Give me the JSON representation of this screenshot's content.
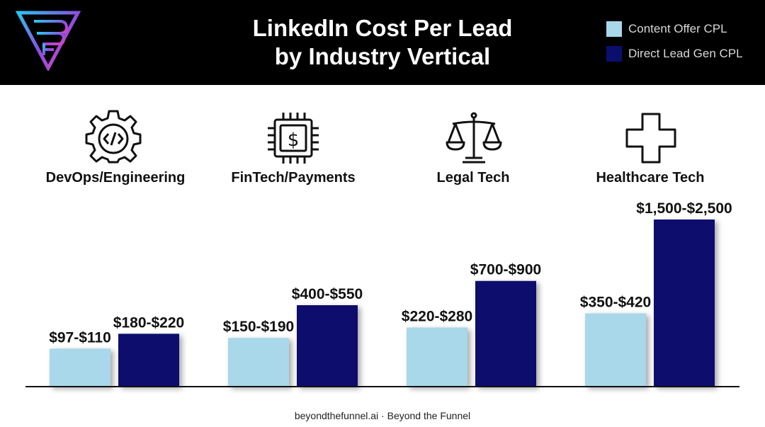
{
  "header": {
    "title_line1": "LinkedIn Cost Per Lead",
    "title_line2": "by Industry Vertical"
  },
  "legend": [
    {
      "label": "Content Offer CPL",
      "color": "#a8d8ea"
    },
    {
      "label": "Direct Lead Gen CPL",
      "color": "#0a0f6e"
    }
  ],
  "categories": [
    {
      "label": "DevOps/Engineering",
      "icon": "gear-code-icon"
    },
    {
      "label": "FinTech/Payments",
      "icon": "chip-dollar-icon"
    },
    {
      "label": "Legal Tech",
      "icon": "scales-icon"
    },
    {
      "label": "Healthcare Tech",
      "icon": "medical-cross-icon"
    }
  ],
  "chart_data": {
    "type": "bar",
    "title": "LinkedIn Cost Per Lead by Industry Vertical",
    "categories": [
      "DevOps/Engineering",
      "FinTech/Payments",
      "Legal Tech",
      "Healthcare Tech"
    ],
    "series": [
      {
        "name": "Content Offer CPL",
        "color": "#a8d8ea",
        "ranges": [
          [
            97,
            110
          ],
          [
            150,
            190
          ],
          [
            220,
            280
          ],
          [
            350,
            420
          ]
        ],
        "labels": [
          "$97-$110",
          "$150-$190",
          "$220-$280",
          "$350-$420"
        ]
      },
      {
        "name": "Direct Lead Gen CPL",
        "color": "#0a0f6e",
        "ranges": [
          [
            180,
            220
          ],
          [
            400,
            550
          ],
          [
            700,
            900
          ],
          [
            1500,
            2500
          ]
        ],
        "labels": [
          "$180-$220",
          "$400-$550",
          "$700-$900",
          "$1,500-$2,500"
        ]
      }
    ],
    "legend_position": "top-right",
    "grid": false,
    "axes_visible": false
  },
  "footer": "beyondthefunnel.ai · Beyond the Funnel"
}
